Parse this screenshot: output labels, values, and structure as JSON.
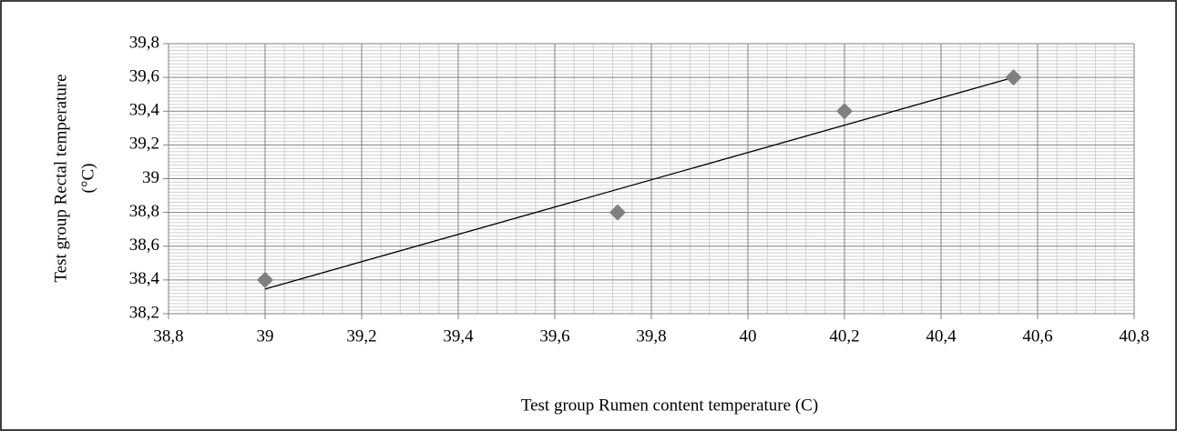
{
  "chart_data": {
    "type": "scatter",
    "x_label": "Test group Rumen content temperature (C)",
    "y_label": [
      "Test group Rectal temperature",
      "(°C)"
    ],
    "x": [
      39,
      39.73,
      40.2,
      40.55
    ],
    "values": [
      38.4,
      38.8,
      39.4,
      39.6
    ],
    "color": "#808080",
    "trendline": "linear",
    "xlim": [
      38.8,
      40.8
    ],
    "xticks": [
      {
        "value": 38.8,
        "label": "38,8"
      },
      39,
      {
        "value": 39.2,
        "label": "39,2"
      },
      {
        "value": 39.4,
        "label": "39,4"
      },
      {
        "value": 39.6,
        "label": "39,6"
      },
      {
        "value": 39.8,
        "label": "39,8"
      },
      40,
      {
        "value": 40.2,
        "label": "40,2"
      },
      {
        "value": 40.4,
        "label": "40,4"
      },
      {
        "value": 40.6,
        "label": "40,6"
      },
      {
        "value": 40.8,
        "label": "40,8"
      }
    ],
    "ylim": [
      38.2,
      39.8
    ],
    "yticks": [
      {
        "value": 38.2,
        "label": "38,2"
      },
      {
        "value": 38.4,
        "label": "38,4"
      },
      {
        "value": 38.6,
        "label": "38,6"
      },
      {
        "value": 38.8,
        "label": "38,8"
      },
      39,
      {
        "value": 39.2,
        "label": "39,2"
      },
      {
        "value": 39.4,
        "label": "39,4"
      },
      {
        "value": 39.6,
        "label": "39,6"
      },
      {
        "value": 39.8,
        "label": "39,8"
      }
    ],
    "grid": true,
    "minor_grid": true
  }
}
